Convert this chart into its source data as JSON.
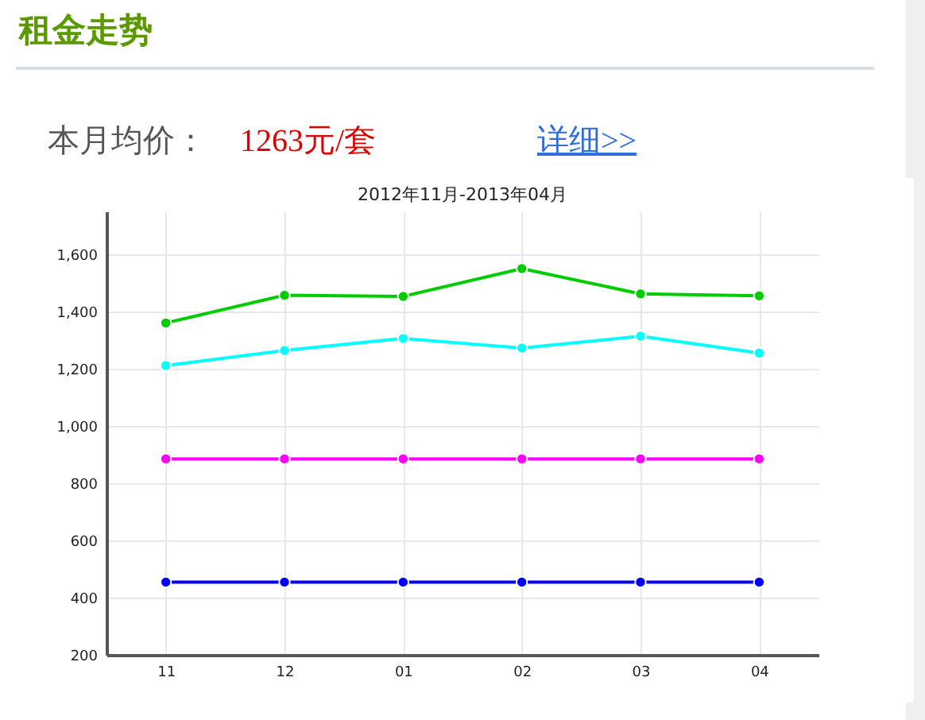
{
  "chart_data": {
    "type": "line",
    "title": "租金走势",
    "subtitle": "2012年11月-2013年04月",
    "annotations": [
      "本月均价：",
      "1263元/套",
      "详细>>"
    ],
    "categories": [
      "11",
      "12",
      "01",
      "02",
      "03",
      "04"
    ],
    "series": [
      {
        "color": "#00cc00",
        "values": [
          1360,
          1457,
          1453,
          1550,
          1462,
          1455
        ]
      },
      {
        "color": "#00ffff",
        "values": [
          1211,
          1264,
          1306,
          1272,
          1314,
          1255
        ]
      },
      {
        "color": "#ff00ff",
        "values": [
          885,
          885,
          885,
          885,
          885,
          885
        ]
      },
      {
        "color": "#0000ff",
        "values": [
          454,
          454,
          454,
          454,
          454,
          454
        ]
      }
    ],
    "ylim": [
      200,
      1750
    ],
    "yticks": [
      200,
      400,
      600,
      800,
      {
        "value": 1000,
        "label": "1,000"
      },
      {
        "value": 1200,
        "label": "1,200"
      },
      {
        "value": 1400,
        "label": "1,400"
      },
      {
        "value": 1600,
        "label": "1,600"
      }
    ],
    "grid": true,
    "legend": false,
    "marker": "circle",
    "line_style": "solid"
  }
}
